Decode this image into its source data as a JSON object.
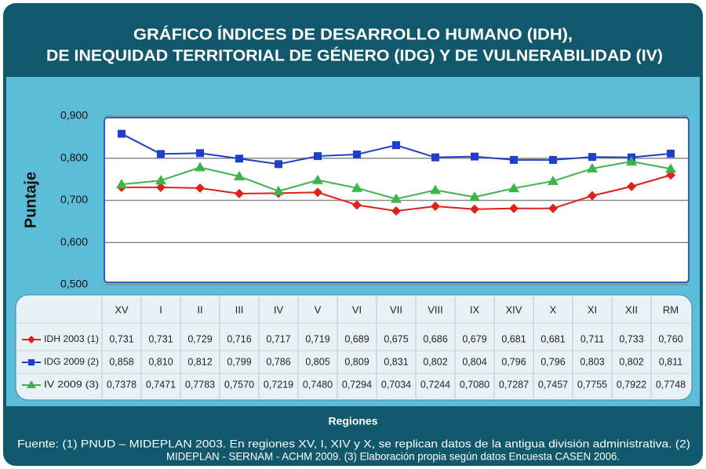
{
  "chart_data": {
    "type": "line",
    "title": [
      "GRÁFICO ÍNDICES DE DESARROLLO HUMANO (IDH),",
      "DE INEQUIDAD TERRITORIAL DE GÉNERO (IDG) Y DE VULNERABILIDAD (IV)"
    ],
    "ylabel": "Puntaje",
    "xlabel": "Regiones",
    "source": [
      "Fuente: (1)  PNUD – MIDEPLAN 2003. En regiones XV, I, XIV y X, se replican datos de la antigua división administrativa. (2)",
      "MIDEPLAN - SERNAM - ACHM 2009. (3) Elaboración propia según datos Encuesta CASEN 2006."
    ],
    "categories": [
      "XV",
      "I",
      "II",
      "III",
      "IV",
      "V",
      "VI",
      "VII",
      "VIII",
      "IX",
      "XIV",
      "X",
      "XI",
      "XII",
      "RM"
    ],
    "ylim": [
      0.5,
      0.9
    ],
    "yticks": [
      {
        "value": 0.5,
        "label": "0,500"
      },
      {
        "value": 0.6,
        "label": "0,600"
      },
      {
        "value": 0.7,
        "label": "0,700"
      },
      {
        "value": 0.8,
        "label": "0,800"
      },
      {
        "value": 0.9,
        "label": "0,900"
      }
    ],
    "grid": true,
    "series": [
      {
        "name": "IDH 2003 (1)",
        "color": "#e0201b",
        "marker": "diamond",
        "values": [
          0.731,
          0.731,
          0.729,
          0.716,
          0.717,
          0.719,
          0.689,
          0.675,
          0.686,
          0.679,
          0.681,
          0.681,
          0.711,
          0.733,
          0.76
        ],
        "value_labels": [
          "0,731",
          "0,731",
          "0,729",
          "0,716",
          "0,717",
          "0,719",
          "0,689",
          "0,675",
          "0,686",
          "0,679",
          "0,681",
          "0,681",
          "0,711",
          "0,733",
          "0,760"
        ]
      },
      {
        "name": "IDG 2009 (2)",
        "color": "#1f3ec9",
        "marker": "square",
        "values": [
          0.858,
          0.81,
          0.812,
          0.799,
          0.786,
          0.805,
          0.809,
          0.831,
          0.802,
          0.804,
          0.796,
          0.796,
          0.803,
          0.802,
          0.811
        ],
        "value_labels": [
          "0,858",
          "0,810",
          "0,812",
          "0,799",
          "0,786",
          "0,805",
          "0,809",
          "0,831",
          "0,802",
          "0,804",
          "0,796",
          "0,796",
          "0,803",
          "0,802",
          "0,811"
        ]
      },
      {
        "name": "IV 2009 (3)",
        "color": "#3cb44a",
        "marker": "triangle",
        "values": [
          0.7378,
          0.7471,
          0.7783,
          0.757,
          0.7219,
          0.748,
          0.7294,
          0.7034,
          0.7244,
          0.708,
          0.7287,
          0.7457,
          0.7755,
          0.7922,
          0.7748
        ],
        "value_labels": [
          "0,7378",
          "0,7471",
          "0,7783",
          "0,7570",
          "0,7219",
          "0,7480",
          "0,7294",
          "0,7034",
          "0,7244",
          "0,7080",
          "0,7287",
          "0,7457",
          "0,7755",
          "0,7922",
          "0,7748"
        ]
      }
    ]
  }
}
